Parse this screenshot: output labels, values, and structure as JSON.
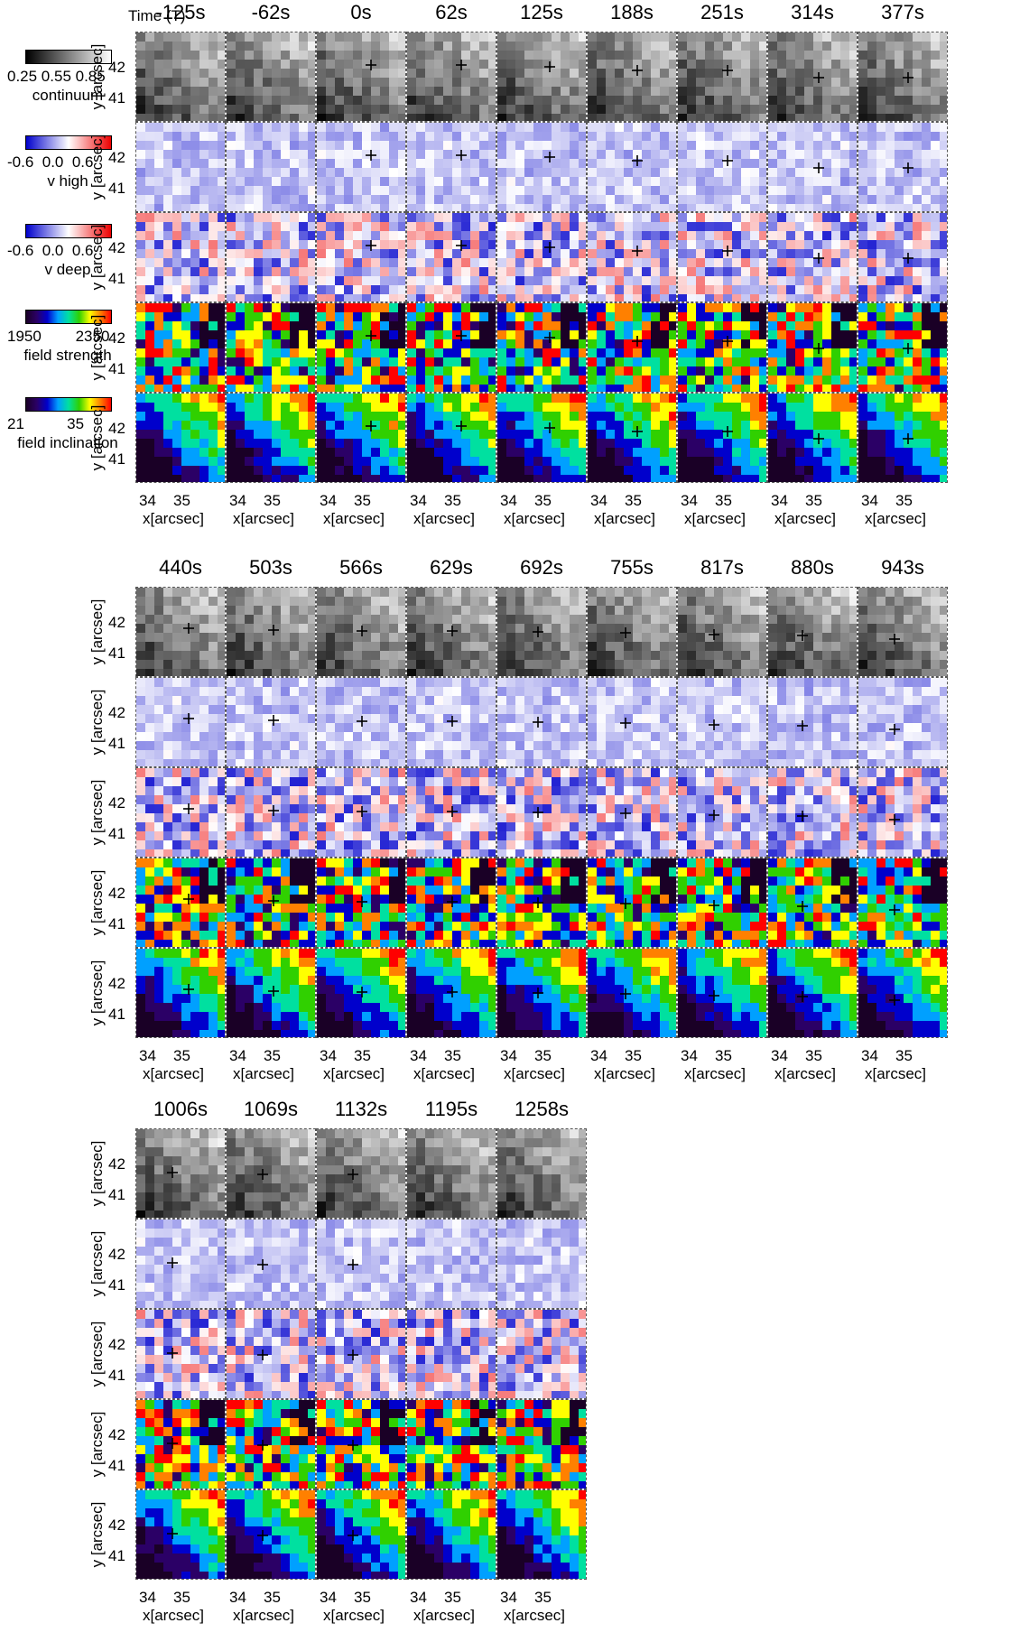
{
  "header": {
    "time_prefix": "Time (T)"
  },
  "legend": [
    {
      "ticks": "0.25 0.55 0.85",
      "name": "continuum",
      "type": "gray"
    },
    {
      "ticks": "-0.6  0.0  0.6",
      "name": "v high",
      "type": "div"
    },
    {
      "ticks": "-0.6  0.0  0.6",
      "name": "v deep",
      "type": "div"
    },
    {
      "ticks": "1950        2350",
      "name": "field strength",
      "type": "rainbow"
    },
    {
      "ticks": "21          35",
      "name": "field inclination",
      "type": "rainbow"
    }
  ],
  "axes": {
    "ylabel": "y [arcsec]",
    "xlabel": "x[arcsec]",
    "yticks": [
      "42",
      "41"
    ],
    "xticks": [
      "34",
      "35"
    ]
  },
  "blocks": [
    {
      "times": [
        "-125s",
        "-62s",
        "0s",
        "62s",
        "125s",
        "188s",
        "251s",
        "314s",
        "377s"
      ]
    },
    {
      "times": [
        "440s",
        "503s",
        "566s",
        "629s",
        "692s",
        "755s",
        "817s",
        "880s",
        "943s"
      ]
    },
    {
      "times": [
        "1006s",
        "1069s",
        "1132s",
        "1195s",
        "1258s"
      ]
    }
  ],
  "rows": [
    "continuum",
    "v high",
    "v deep",
    "field strength",
    "field inclination"
  ],
  "colors": {
    "rainbow": [
      "#1a0026",
      "#2b0066",
      "#0000cc",
      "#00a0ff",
      "#00e0a0",
      "#30d000",
      "#ffff00",
      "#ff8000",
      "#ff0000"
    ],
    "diverging": [
      "#0000cc",
      "#ffffff",
      "#ee0000"
    ]
  }
}
